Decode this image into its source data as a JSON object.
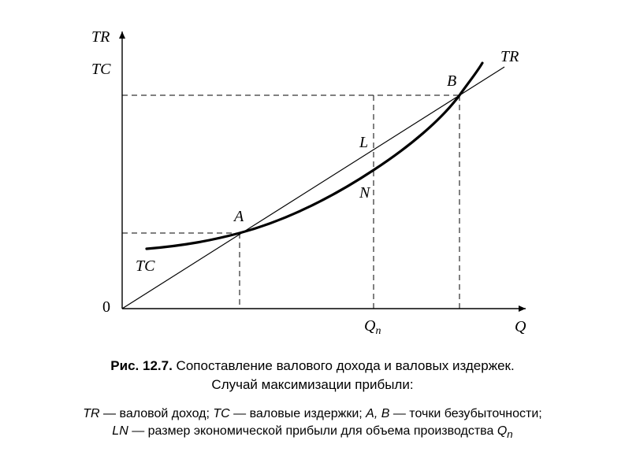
{
  "figure": {
    "axis_labels": {
      "y_top": "TR",
      "y_bottom": "TC",
      "x": "Q",
      "origin": "0",
      "qn_main": "Q",
      "qn_sub": "n"
    },
    "curve_labels": {
      "tr": "TR",
      "tc": "TC"
    },
    "point_labels": {
      "a": "A",
      "b": "B",
      "l": "L",
      "n": "N"
    }
  },
  "caption": {
    "number": "Рис. 12.7.",
    "line1": "Сопоставление валового дохода и валовых издержек.",
    "line2": "Случай максимизации прибыли:"
  },
  "legend": {
    "line1": {
      "tr_symbol": "TR",
      "tr_text": " — валовой доход; ",
      "tc_symbol": "TC",
      "tc_text": " — валовые издержки; ",
      "ab_symbol": "A, B",
      "ab_text": " — точки безубыточности;"
    },
    "line2": {
      "ln_symbol": "LN",
      "ln_text": " — размер экономической прибыли для объема производства ",
      "q_symbol": "Q",
      "q_sub": "n"
    }
  }
}
